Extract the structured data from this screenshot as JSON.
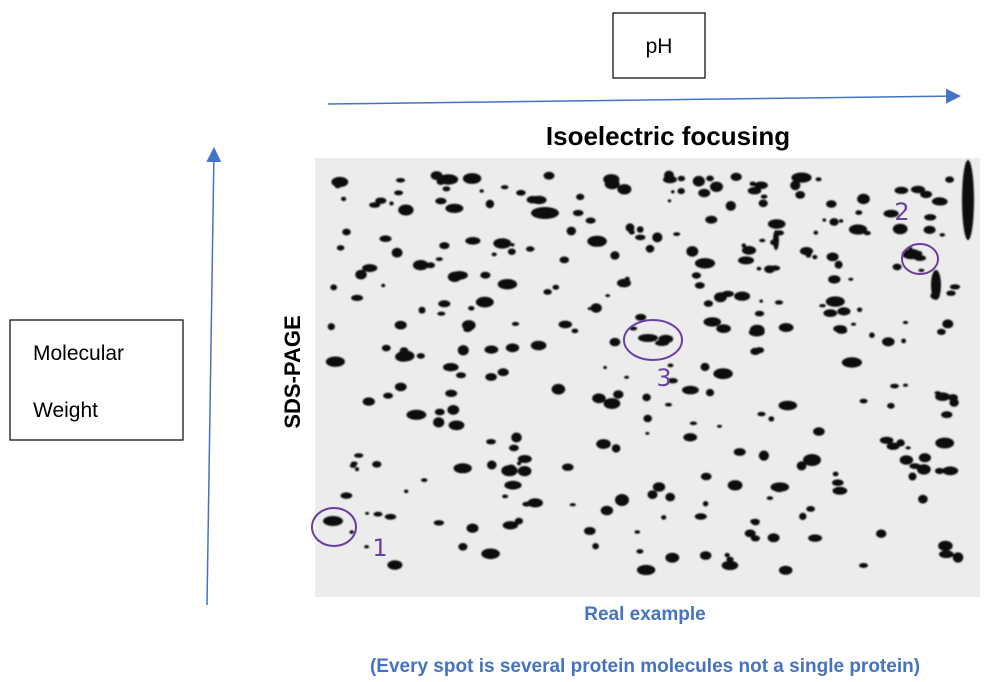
{
  "ph_label": "pH",
  "mw_label": {
    "line1": "Molecular",
    "line2": "Weight"
  },
  "gel": {
    "title": "Isoelectric focusing",
    "side_label": "SDS-PAGE",
    "annotations": [
      "1",
      "2",
      "3"
    ]
  },
  "caption": "Real example",
  "note": "(Every spot is several protein molecules not a single protein)"
}
